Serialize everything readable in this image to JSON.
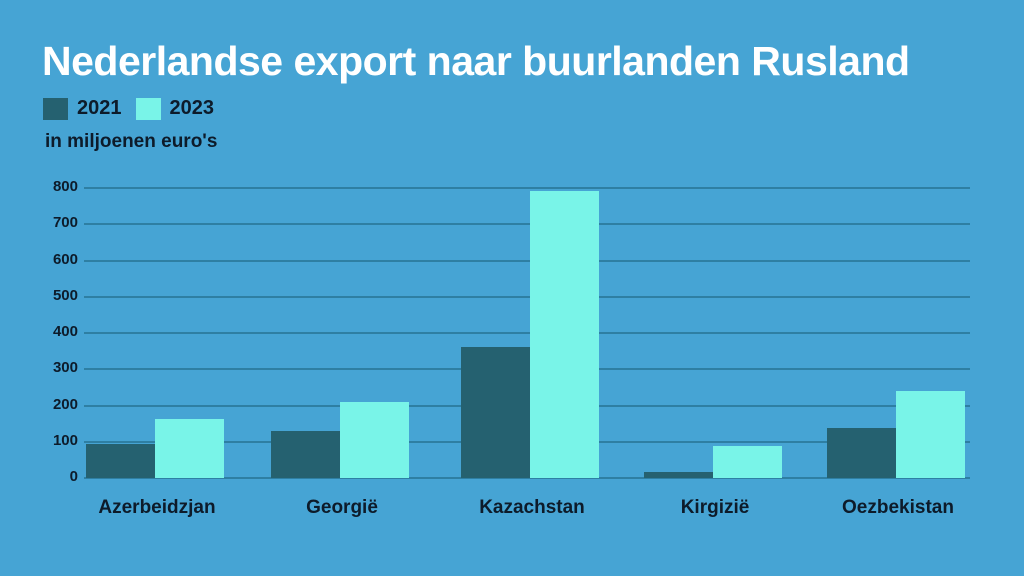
{
  "title": "Nederlandse export naar buurlanden Rusland",
  "subtitle": "in miljoenen euro's",
  "legend": [
    {
      "label": "2021",
      "color": "#256170"
    },
    {
      "label": "2023",
      "color": "#79f4e8"
    }
  ],
  "colors": {
    "background": "#46a4d4",
    "grid": "#2e7fa3",
    "text": "#0d1b2a",
    "title": "#ffffff"
  },
  "chart_data": {
    "type": "bar",
    "title": "Nederlandse export naar buurlanden Rusland",
    "subtitle": "in miljoenen euro's",
    "xlabel": "",
    "ylabel": "in miljoenen euro's",
    "categories": [
      "Azerbeidzjan",
      "Georgië",
      "Kazachstan",
      "Kirgizië",
      "Oezbekistan"
    ],
    "series": [
      {
        "name": "2021",
        "color": "#256170",
        "values": [
          94,
          130,
          361,
          17,
          138
        ]
      },
      {
        "name": "2023",
        "color": "#79f4e8",
        "values": [
          163,
          210,
          792,
          88,
          240
        ]
      }
    ],
    "ylim": [
      0,
      800
    ],
    "yticks": [
      0,
      100,
      200,
      300,
      400,
      500,
      600,
      700,
      800
    ],
    "grid": true,
    "legend_position": "top-left"
  }
}
